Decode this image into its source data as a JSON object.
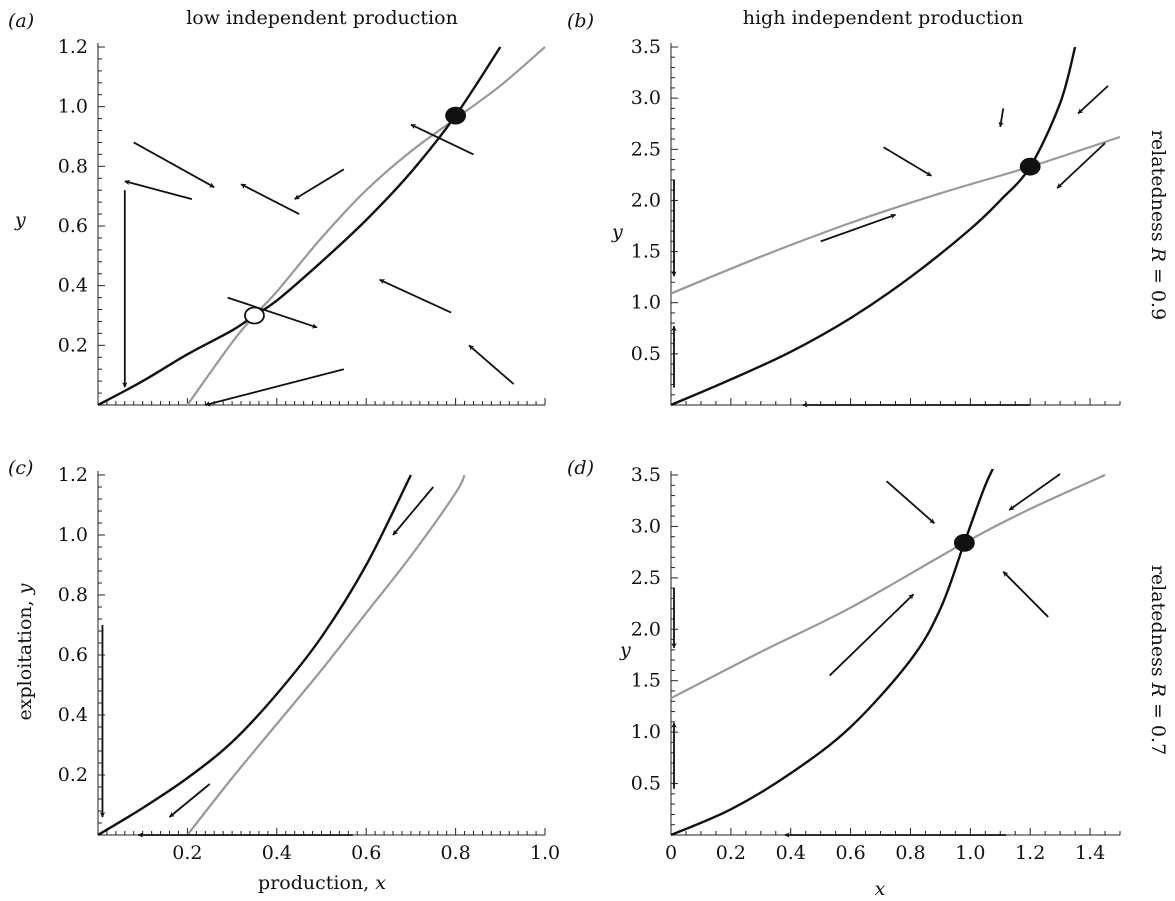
{
  "figure": {
    "column_titles": [
      "low independent production",
      "high independent production"
    ],
    "row_labels": [
      {
        "text": "relatedness ",
        "var": "R",
        "value": " = 0.9"
      },
      {
        "text": "relatedness ",
        "var": "R",
        "value": " = 0.7"
      }
    ],
    "colors": {
      "black_curve": "#111111",
      "grey_curve": "#999999",
      "axis": "#222222"
    }
  },
  "chart_data": [
    {
      "id": "a",
      "type": "line",
      "panel_label": "(a)",
      "title": "low independent production",
      "xlabel": "",
      "ylabel": "y",
      "xlim": [
        0,
        1.0
      ],
      "ylim": [
        0,
        1.2
      ],
      "xticks": [],
      "yticks": [
        "0.2",
        "0.4",
        "0.6",
        "0.8",
        "1.0",
        "1.2"
      ],
      "series": [
        {
          "color": "#111111",
          "x": [
            0,
            0.1,
            0.2,
            0.3,
            0.35,
            0.4,
            0.5,
            0.6,
            0.7,
            0.8,
            0.9
          ],
          "y": [
            0,
            0.08,
            0.17,
            0.25,
            0.3,
            0.35,
            0.48,
            0.62,
            0.78,
            0.97,
            1.2
          ]
        },
        {
          "color": "#999999",
          "x": [
            0.2,
            0.3,
            0.35,
            0.4,
            0.5,
            0.6,
            0.7,
            0.8,
            0.9,
            1.0
          ],
          "y": [
            0,
            0.21,
            0.3,
            0.38,
            0.56,
            0.72,
            0.85,
            0.96,
            1.07,
            1.2
          ]
        }
      ],
      "equilibria": [
        {
          "x": 0.35,
          "y": 0.3,
          "stable": false
        },
        {
          "x": 0.8,
          "y": 0.97,
          "stable": true
        }
      ],
      "arrows": [
        {
          "from": [
            0.08,
            0.88
          ],
          "to": [
            0.26,
            0.73
          ]
        },
        {
          "from": [
            0.84,
            0.84
          ],
          "to": [
            0.7,
            0.94
          ]
        },
        {
          "from": [
            0.45,
            0.64
          ],
          "to": [
            0.32,
            0.74
          ]
        },
        {
          "from": [
            0.55,
            0.79
          ],
          "to": [
            0.44,
            0.69
          ]
        },
        {
          "from": [
            0.29,
            0.36
          ],
          "to": [
            0.49,
            0.26
          ]
        },
        {
          "from": [
            0.79,
            0.31
          ],
          "to": [
            0.63,
            0.42
          ]
        },
        {
          "from": [
            0.93,
            0.07
          ],
          "to": [
            0.83,
            0.2
          ]
        },
        {
          "from": [
            0.21,
            0.69
          ],
          "to": [
            0.06,
            0.75
          ]
        },
        {
          "from": [
            0.55,
            0.12
          ],
          "to": [
            0.24,
            0.0
          ]
        },
        {
          "from": [
            0.06,
            0.72
          ],
          "to": [
            0.06,
            0.06
          ]
        }
      ]
    },
    {
      "id": "b",
      "type": "line",
      "panel_label": "(b)",
      "title": "high independent production",
      "xlabel": "",
      "ylabel": "y",
      "xlim": [
        0,
        1.5
      ],
      "ylim": [
        0,
        3.5
      ],
      "xticks": [],
      "yticks": [
        "0.5",
        "1.0",
        "1.5",
        "2.0",
        "2.5",
        "3.0",
        "3.5"
      ],
      "series": [
        {
          "color": "#111111",
          "x": [
            0,
            0.2,
            0.4,
            0.6,
            0.8,
            1.0,
            1.1,
            1.2,
            1.3,
            1.35
          ],
          "y": [
            0,
            0.25,
            0.52,
            0.85,
            1.25,
            1.72,
            2.0,
            2.33,
            2.95,
            3.5
          ]
        },
        {
          "color": "#999999",
          "x": [
            0,
            0.3,
            0.6,
            0.9,
            1.2,
            1.5
          ],
          "y": [
            1.09,
            1.45,
            1.78,
            2.07,
            2.33,
            2.62
          ]
        }
      ],
      "equilibria": [
        {
          "x": 1.2,
          "y": 2.33,
          "stable": true
        }
      ],
      "arrows": [
        {
          "from": [
            0.71,
            2.52
          ],
          "to": [
            0.87,
            2.24
          ]
        },
        {
          "from": [
            1.11,
            2.9
          ],
          "to": [
            1.1,
            2.72
          ]
        },
        {
          "from": [
            1.45,
            2.56
          ],
          "to": [
            1.29,
            2.12
          ]
        },
        {
          "from": [
            1.46,
            3.12
          ],
          "to": [
            1.36,
            2.85
          ]
        },
        {
          "from": [
            0.5,
            1.6
          ],
          "to": [
            0.75,
            1.86
          ]
        },
        {
          "from": [
            0.01,
            2.2
          ],
          "to": [
            0.01,
            1.26
          ]
        },
        {
          "from": [
            0.01,
            0.17
          ],
          "to": [
            0.01,
            0.77
          ]
        },
        {
          "from": [
            1.2,
            0.0
          ],
          "to": [
            0.44,
            0.0
          ]
        }
      ]
    },
    {
      "id": "c",
      "type": "line",
      "panel_label": "(c)",
      "title": "",
      "xlabel": "production, x",
      "ylabel": "exploitation, y",
      "xlim": [
        0,
        1.0
      ],
      "ylim": [
        0,
        1.2
      ],
      "xticks": [
        "0.2",
        "0.4",
        "0.6",
        "0.8",
        "1.0"
      ],
      "yticks": [
        "0.2",
        "0.4",
        "0.6",
        "0.8",
        "1.0",
        "1.2"
      ],
      "series": [
        {
          "color": "#111111",
          "x": [
            0,
            0.1,
            0.2,
            0.3,
            0.4,
            0.5,
            0.6,
            0.7
          ],
          "y": [
            0,
            0.09,
            0.19,
            0.31,
            0.47,
            0.66,
            0.9,
            1.2
          ]
        },
        {
          "color": "#999999",
          "x": [
            0.2,
            0.3,
            0.4,
            0.5,
            0.6,
            0.7,
            0.8,
            0.82
          ],
          "y": [
            0,
            0.19,
            0.37,
            0.55,
            0.74,
            0.93,
            1.14,
            1.2
          ]
        }
      ],
      "equilibria": [],
      "arrows": [
        {
          "from": [
            0.75,
            1.16
          ],
          "to": [
            0.66,
            1.0
          ]
        },
        {
          "from": [
            0.25,
            0.17
          ],
          "to": [
            0.16,
            0.06
          ]
        },
        {
          "from": [
            0.01,
            0.7
          ],
          "to": [
            0.01,
            0.06
          ]
        },
        {
          "from": [
            0.57,
            0.0
          ],
          "to": [
            0.09,
            0.0
          ]
        }
      ]
    },
    {
      "id": "d",
      "type": "line",
      "panel_label": "(d)",
      "title": "",
      "xlabel": "x",
      "ylabel": "y",
      "xlim": [
        0,
        1.5
      ],
      "ylim": [
        0,
        3.5
      ],
      "xticks": [
        "0",
        "0.2",
        "0.4",
        "0.6",
        "0.8",
        "1.0",
        "1.2",
        "1.4"
      ],
      "yticks": [
        "0.5",
        "1.0",
        "1.5",
        "2.0",
        "2.5",
        "3.0",
        "3.5"
      ],
      "series": [
        {
          "color": "#111111",
          "x": [
            0,
            0.2,
            0.4,
            0.6,
            0.8,
            0.9,
            0.98,
            1.05,
            1.1
          ],
          "y": [
            0,
            0.25,
            0.6,
            1.05,
            1.7,
            2.2,
            2.84,
            3.4,
            3.7
          ]
        },
        {
          "color": "#999999",
          "x": [
            0,
            0.3,
            0.6,
            0.98,
            1.2,
            1.45
          ],
          "y": [
            1.33,
            1.78,
            2.21,
            2.84,
            3.17,
            3.5
          ]
        }
      ],
      "equilibria": [
        {
          "x": 0.98,
          "y": 2.84,
          "stable": true
        }
      ],
      "arrows": [
        {
          "from": [
            0.72,
            3.44
          ],
          "to": [
            0.88,
            3.03
          ]
        },
        {
          "from": [
            1.3,
            3.51
          ],
          "to": [
            1.13,
            3.16
          ]
        },
        {
          "from": [
            1.26,
            2.12
          ],
          "to": [
            1.11,
            2.56
          ]
        },
        {
          "from": [
            0.53,
            1.55
          ],
          "to": [
            0.81,
            2.34
          ]
        },
        {
          "from": [
            0.01,
            2.4
          ],
          "to": [
            0.01,
            1.82
          ]
        },
        {
          "from": [
            0.01,
            0.45
          ],
          "to": [
            0.01,
            1.09
          ]
        },
        {
          "from": [
            1.12,
            0.0
          ],
          "to": [
            0.38,
            0.0
          ]
        }
      ]
    }
  ]
}
